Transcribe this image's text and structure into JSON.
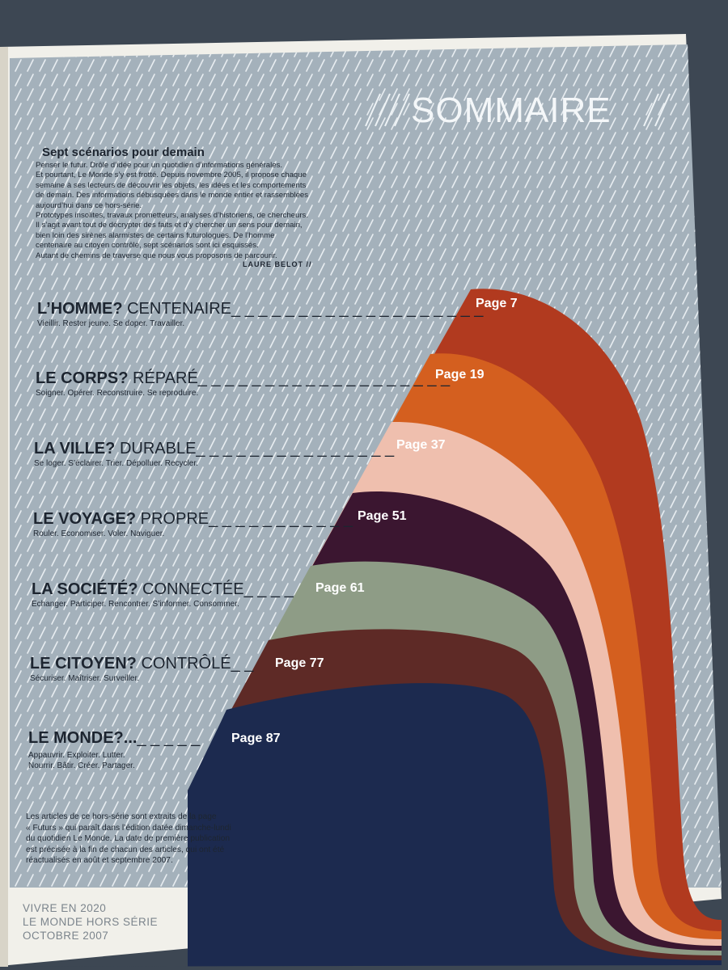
{
  "header": {
    "title": "SOMMAIRE"
  },
  "intro": {
    "title": "Sept scénarios pour demain",
    "lines": [
      "Penser le futur. Drôle d’idée pour un quotidien d’informations générales.",
      "Et pourtant, Le Monde s’y est frotté. Depuis novembre 2005, il propose chaque",
      "semaine à ses lecteurs de découvrir les objets, les idées et les comportements",
      "de demain. Des informations débusquées dans le monde entier et rassemblées",
      "aujourd’hui dans ce hors-série.",
      "Prototypes insolites, travaux prometteurs, analyses d’historiens, de chercheurs.",
      "Il s’agit avant tout de décrypter des faits et d’y chercher un sens pour demain,",
      "bien loin des sirènes alarmistes de certains futurologues. De l’homme",
      "centenaire au citoyen contrôlé, sept scénarios sont ici esquissés.",
      "Autant de chemins de traverse que nous vous proposons de parcourir."
    ],
    "signature": "LAURE BELOT //"
  },
  "chapters": [
    {
      "subject": "L’HOMME?",
      "theme": "CENTENAIRE",
      "leader": "_ _ _ _ _ _ _ _ _ _ _ _ _ _ _ _ _ _ _",
      "description": "Vieillir. Rester jeune. Se doper. Travailler.",
      "page": "Page 7",
      "color": "#b13a1f"
    },
    {
      "subject": "LE CORPS?",
      "theme": "RÉPARÉ",
      "leader": "_ _ _ _ _ _ _ _ _ _ _ _ _ _ _ _ _ _ _",
      "description": "Soigner. Opérer. Reconstruire. Se reproduire.",
      "page": "Page 19",
      "color": "#d45f1f"
    },
    {
      "subject": "LA VILLE?",
      "theme": "DURABLE",
      "leader": "_ _ _ _ _ _ _ _ _ _ _ _ _ _ _",
      "description": "Se loger.  S’éclairer. Trier. Dépolluer. Recycler.",
      "page": "Page 37",
      "color": "#efbfae"
    },
    {
      "subject": "LE VOYAGE?",
      "theme": "PROPRE",
      "leader": "_ _ _ _ _ _ _ _ _ _ _",
      "description": "Rouler. Economiser. Voler. Naviguer.",
      "page": "Page 51",
      "color": "#3b1630"
    },
    {
      "subject": "LA SOCIÉTÉ?",
      "theme": "CONNECTÉE",
      "leader": "_ _ _ _",
      "description": "Echanger. Participer. Rencontrer. S’informer. Consommer.",
      "page": "Page 61",
      "color": "#8e9c86"
    },
    {
      "subject": "LE CITOYEN?",
      "theme": "CONTRÔLÉ",
      "leader": "_ _",
      "description": "Sécuriser. Maîtriser. Surveiller.",
      "page": "Page 77",
      "color": "#5e2a26"
    },
    {
      "subject": "LE MONDE?...",
      "theme": "",
      "leader": "_ _ _ _ _",
      "description": "Appauvrir. Exploiter. Lutter.",
      "description2": "Nourrir. Bâtir. Créer. Partager.",
      "page": "Page 87",
      "color": "#1c2a4f"
    }
  ],
  "footnote": {
    "lines": [
      "Les articles de ce hors-série sont extraits de la page",
      "« Futurs » qui paraît  dans l’édition datée dimanche-lundi",
      "du quotidien Le Monde. La date de première publication",
      "est précisée à la fin de chacun des articles, qui ont été",
      "réactualisés en août et septembre 2007."
    ]
  },
  "footer": {
    "lines": [
      "VIVRE EN 2020",
      "LE MONDE HORS SÉRIE",
      "OCTOBRE 2007"
    ]
  },
  "colors": {
    "background": "#a4b1bb",
    "paper": "#f1f0ea",
    "stripe": "#e8edf0",
    "text": "#1d2530"
  }
}
